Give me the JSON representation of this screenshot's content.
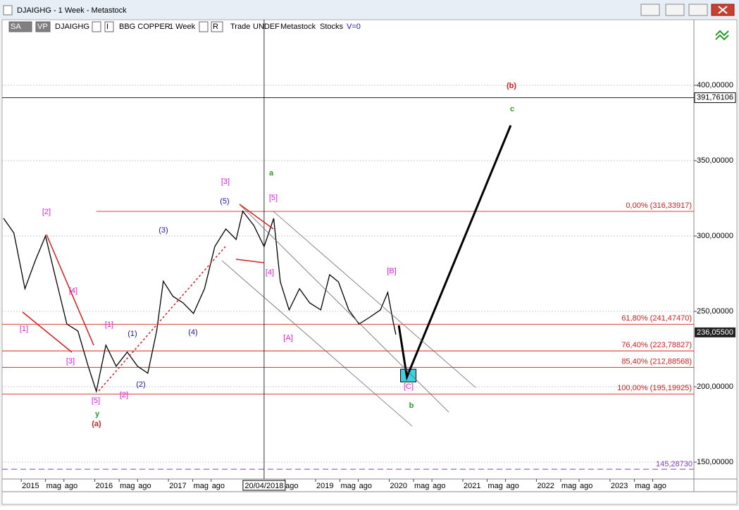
{
  "window": {
    "title": "DJAIGHG - 1 Week - Metastock"
  },
  "toolbar": [
    "SA",
    "VP",
    "DJAIGHG",
    "I",
    "BBG COPPER",
    "1 Week",
    "R",
    "Trade",
    "UNDEF",
    "Metastock",
    "Stocks",
    "V=0"
  ],
  "chart_data": {
    "type": "line",
    "color": "#000000",
    "x": [
      2014.76,
      2014.9,
      2015.05,
      2015.19,
      2015.33,
      2015.48,
      2015.62,
      2015.77,
      2015.91,
      2016.02,
      2016.15,
      2016.29,
      2016.44,
      2016.58,
      2016.72,
      2016.84,
      2016.93,
      2017.06,
      2017.2,
      2017.34,
      2017.49,
      2017.63,
      2017.78,
      2017.92,
      2018.01,
      2018.16,
      2018.3,
      2018.43,
      2018.52,
      2018.64,
      2018.78,
      2018.92,
      2019.07,
      2019.19,
      2019.31,
      2019.45,
      2019.59,
      2019.74,
      2019.88,
      2019.98,
      2020.05,
      2020.09
    ],
    "values": [
      311.7,
      302,
      265,
      283.6,
      300,
      269.6,
      241.6,
      237,
      213.6,
      197,
      227.6,
      213.6,
      223,
      213.6,
      209,
      237,
      270,
      260,
      255.6,
      248.6,
      265,
      293,
      304.7,
      297.7,
      316.4,
      307,
      293,
      311.7,
      269.6,
      251,
      265,
      255.6,
      251,
      274.3,
      269.6,
      251,
      241.6,
      246.3,
      251,
      262.6,
      244,
      234.6
    ],
    "projection": {
      "x": [
        2020.13,
        2020.24,
        2021.65
      ],
      "values": [
        240.7,
        206.5,
        373.4
      ]
    },
    "xlim": [
      2014.74,
      2024.14
    ],
    "ylim": [
      138.8,
      433.2
    ],
    "xticks": [
      2015,
      {
        "value": 2015.33,
        "label": "mag"
      },
      {
        "value": 2015.58,
        "label": "ago"
      },
      2016,
      {
        "value": 2016.33,
        "label": "mag"
      },
      {
        "value": 2016.58,
        "label": "ago"
      },
      2017,
      {
        "value": 2017.33,
        "label": "mag"
      },
      {
        "value": 2017.58,
        "label": "ago"
      },
      {
        "value": 2018.58,
        "label": "ago"
      },
      2019,
      {
        "value": 2019.33,
        "label": "mag"
      },
      {
        "value": 2019.58,
        "label": "ago"
      },
      2020,
      {
        "value": 2020.33,
        "label": "mag"
      },
      {
        "value": 2020.58,
        "label": "ago"
      },
      2021,
      {
        "value": 2021.33,
        "label": "mag"
      },
      {
        "value": 2021.58,
        "label": "ago"
      },
      2022,
      {
        "value": 2022.33,
        "label": "mag"
      },
      {
        "value": 2022.58,
        "label": "ago"
      },
      2023,
      {
        "value": 2023.33,
        "label": "mag"
      },
      {
        "value": 2023.58,
        "label": "ago"
      }
    ],
    "yticks": [
      {
        "value": 150,
        "label": "150,00000"
      },
      {
        "value": 200,
        "label": "200,00000"
      },
      {
        "value": 250,
        "label": "250,00000"
      },
      {
        "value": 300,
        "label": "300,00000"
      },
      {
        "value": 350,
        "label": "350,00000"
      },
      {
        "value": 400,
        "label": "400,00000"
      }
    ],
    "fib_color": "#d42020",
    "fib_levels": [
      {
        "value": 316.33917,
        "label": "0,00% (316,33917)"
      },
      {
        "value": 241.4747,
        "label": "61,80% (241,47470)"
      },
      {
        "value": 223.78827,
        "label": "76,40% (223,78827)"
      },
      {
        "value": 212.88568,
        "label": "85,40% (212,88568)"
      },
      {
        "value": 195.19925,
        "label": "100,00% (195,19925)"
      }
    ],
    "crosshair": {
      "x": 2018.3,
      "date": "20/04/2018",
      "value": 391.76106,
      "value_label": "391,76106"
    },
    "last_price": {
      "value": 236.055,
      "label": "236,05500"
    },
    "marker_line": {
      "value": 145.2873,
      "label": "145,28730",
      "color": "#8040c0"
    },
    "annotations": [
      {
        "text": "[2]",
        "color": "#e020e0"
      },
      {
        "text": "[1]",
        "color": "#e020e0"
      },
      {
        "text": "[4]",
        "color": "#e020e0"
      },
      {
        "text": "[3]",
        "color": "#e020e0"
      },
      {
        "text": "[5]",
        "color": "#e020e0"
      },
      {
        "text": "y",
        "color": "#2a9a2a"
      },
      {
        "text": "(a)",
        "color": "#d42020"
      },
      {
        "text": "[1]",
        "color": "#e020e0"
      },
      {
        "text": "(1)",
        "color": "#1a1aa0"
      },
      {
        "text": "[2]",
        "color": "#e020e0"
      },
      {
        "text": "(2)",
        "color": "#1a1aa0"
      },
      {
        "text": "(3)",
        "color": "#1a1aa0"
      },
      {
        "text": "(4)",
        "color": "#1a1aa0"
      },
      {
        "text": "(5)",
        "color": "#1a1aa0"
      },
      {
        "text": "[3]",
        "color": "#e020e0"
      },
      {
        "text": "a",
        "color": "#2a9a2a"
      },
      {
        "text": "[5]",
        "color": "#e020e0"
      },
      {
        "text": "[4]",
        "color": "#e020e0"
      },
      {
        "text": "[A]",
        "color": "#e020e0"
      },
      {
        "text": "[B]",
        "color": "#e020e0"
      },
      {
        "text": "[C]",
        "color": "#e020e0"
      },
      {
        "text": "b",
        "color": "#2a9a2a"
      },
      {
        "text": "(b)",
        "color": "#d42020"
      },
      {
        "text": "c",
        "color": "#2a9a2a"
      }
    ]
  }
}
